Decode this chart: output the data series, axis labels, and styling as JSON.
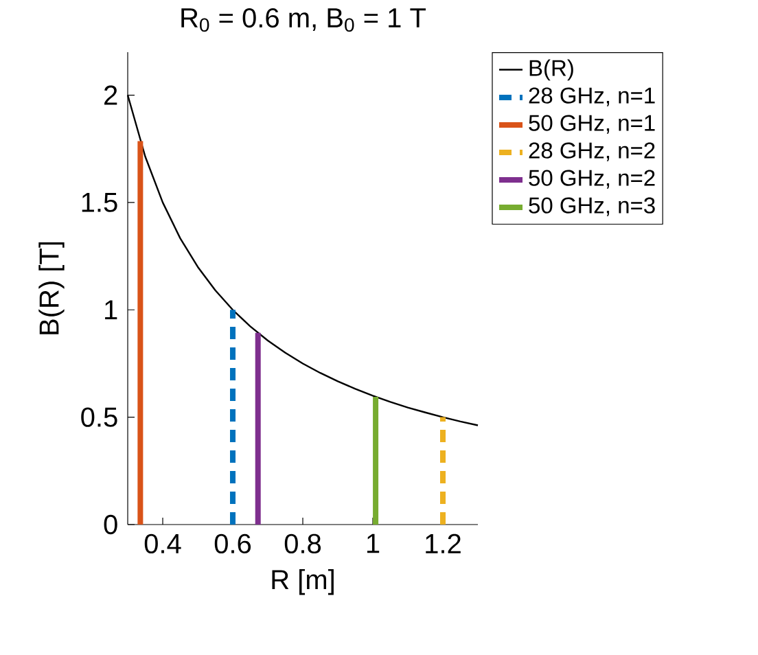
{
  "chart_data": {
    "type": "line",
    "title": "R$_{0}$ = 0.6 m, B$_{0}$ = 1 T",
    "xlabel": "R [m]",
    "ylabel": "B(R) [T]",
    "xlim": [
      0.3,
      1.3
    ],
    "ylim": [
      0,
      2.2
    ],
    "xticks": [
      0.4,
      0.6,
      0.8,
      1,
      1.2
    ],
    "yticks": [
      0,
      0.5,
      1,
      1.5,
      2
    ],
    "legend": "right",
    "marker": "none",
    "series": [
      {
        "name": "B(R)",
        "color": "#000000",
        "line_style": "solid",
        "x": [
          0.3,
          0.35,
          0.4,
          0.45,
          0.5,
          0.55,
          0.6,
          0.65,
          0.7,
          0.75,
          0.8,
          0.85,
          0.9,
          0.95,
          1.0,
          1.05,
          1.1,
          1.15,
          1.2,
          1.25,
          1.3
        ],
        "values": [
          2.0,
          1.714,
          1.5,
          1.333,
          1.2,
          1.091,
          1.0,
          0.923,
          0.857,
          0.8,
          0.75,
          0.706,
          0.667,
          0.632,
          0.6,
          0.571,
          0.545,
          0.522,
          0.5,
          0.48,
          0.462
        ]
      },
      {
        "name": "28 GHz, n=1",
        "color": "#0072bd",
        "line_style": "dashed",
        "x": [
          0.6,
          0.6
        ],
        "values": [
          0,
          1.0
        ]
      },
      {
        "name": "50 GHz, n=1",
        "color": "#d95319",
        "line_style": "solid",
        "x": [
          0.336,
          0.336
        ],
        "values": [
          0,
          1.786
        ]
      },
      {
        "name": "28 GHz, n=2",
        "color": "#edb120",
        "line_style": "dashed",
        "x": [
          1.2,
          1.2
        ],
        "values": [
          0,
          0.5
        ]
      },
      {
        "name": "50 GHz, n=2",
        "color": "#7e2f8e",
        "line_style": "solid",
        "x": [
          0.672,
          0.672
        ],
        "values": [
          0,
          0.893
        ]
      },
      {
        "name": "50 GHz, n=3",
        "color": "#77ac30",
        "line_style": "solid",
        "x": [
          1.008,
          1.008
        ],
        "values": [
          0,
          0.595
        ]
      }
    ]
  }
}
